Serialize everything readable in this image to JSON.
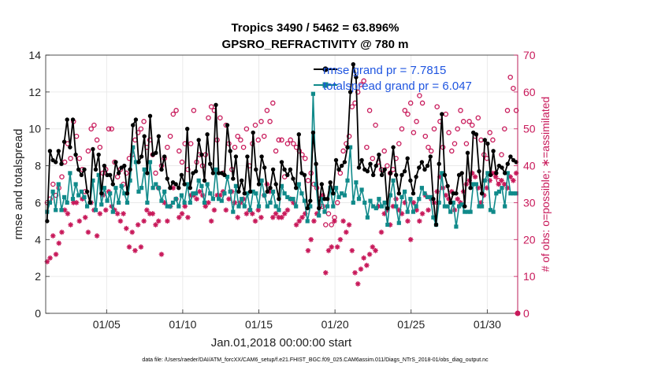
{
  "chart_data": {
    "type": "line",
    "title": "Tropics 3490 / 5462 = 63.896%",
    "subtitle": "GPSRO_REFRACTIVITY @ 780 m",
    "xlabel": "Jan.01,2018 00:00:00 start",
    "ylabel": "rmse and totalspread",
    "ylabel_right": "# of obs: o=possible; ∗=assimilated",
    "footnote": "data file: /Users/raeder/DAI/ATM_forcXX/CAM6_setup/f.e21.FHIST_BGC.f09_025.CAM6assim.011/Diags_NTrS_2018-01/obs_diag_output.nc",
    "xlim": [
      1,
      32
    ],
    "ylim": [
      0,
      14
    ],
    "ylim_right": [
      0,
      70
    ],
    "x_ticks": [
      5,
      10,
      15,
      20,
      25,
      30
    ],
    "x_tick_labels": [
      "01/05",
      "01/10",
      "01/15",
      "01/20",
      "01/25",
      "01/30"
    ],
    "y_ticks": [
      0,
      2,
      4,
      6,
      8,
      10,
      12,
      14
    ],
    "y_tick_labels": [
      "0",
      "2",
      "4",
      "6",
      "8",
      "10",
      "12",
      "14"
    ],
    "y_right_ticks": [
      0,
      10,
      20,
      30,
      40,
      50,
      60,
      70
    ],
    "y_right_tick_labels": [
      "0",
      "10",
      "20",
      "30",
      "40",
      "50",
      "60",
      "70"
    ],
    "grid": true,
    "legend_position": "top-right",
    "series": [
      {
        "name": "rmse grand pr = 7.7815",
        "color": "#000000",
        "marker": "filled-circle",
        "values": [
          5.0,
          8.8,
          8.3,
          8.2,
          8.8,
          8.1,
          9.3,
          10.5,
          9.0,
          10.5,
          8.6,
          7.8,
          7.5,
          7.8,
          6.6,
          6.0,
          8.9,
          7.8,
          8.6,
          6.5,
          8.0,
          7.5,
          7.5,
          7.0,
          8.2,
          7.6,
          7.9,
          8.0,
          6.5,
          7.8,
          10.2,
          10.5,
          8.2,
          8.5,
          9.6,
          7.6,
          10.7,
          8.6,
          8.7,
          9.6,
          7.8,
          8.5,
          7.3,
          6.8,
          7.1,
          7.0,
          6.8,
          7.5,
          7.0,
          10.0,
          6.8,
          7.6,
          7.7,
          9.4,
          8.6,
          7.2,
          9.7,
          8.1,
          7.6,
          11.3,
          7.6,
          7.6,
          7.5,
          10.2,
          8.8,
          7.3,
          8.5,
          6.6,
          7.2,
          6.5,
          8.5,
          6.6,
          9.8,
          7.8,
          7.0,
          8.5,
          7.9,
          6.6,
          6.8,
          7.8,
          7.0,
          6.2,
          8.2,
          7.8,
          7.5,
          7.8,
          7.3,
          6.8,
          9.7,
          7.6,
          7.5,
          5.7,
          6.1,
          9.8,
          8.1,
          5.7,
          7.0,
          6.2,
          6.2,
          7.1,
          6.5,
          8.3,
          7.8,
          8.0,
          8.2,
          9.0,
          12.0,
          13.5,
          12.8,
          7.9,
          8.3,
          7.8,
          7.7,
          8.1,
          7.5,
          8.0,
          8.6,
          7.5,
          7.8,
          5.7,
          7.6,
          9.0,
          7.5,
          6.5,
          7.5,
          7.7,
          8.4,
          7.2,
          6.5,
          7.4,
          7.9,
          8.2,
          7.8,
          8.0,
          8.5,
          6.2,
          4.8,
          8.1,
          10.8,
          7.5,
          6.9,
          6.0,
          6.5,
          6.5,
          7.5,
          7.6,
          5.8,
          8.7,
          6.8,
          9.8,
          9.7,
          7.7,
          6.5,
          9.4,
          9.2,
          7.5,
          8.8,
          7.6,
          8.0,
          7.9,
          7.6,
          8.1,
          8.5,
          8.3,
          8.2
        ]
      },
      {
        "name": "totalspread grand pr = 6.047",
        "color": "#108a8a",
        "marker": "filled-square",
        "values": [
          5.5,
          6.0,
          6.6,
          5.6,
          7.0,
          5.6,
          6.3,
          6.0,
          7.6,
          6.2,
          7.0,
          6.4,
          6.6,
          6.3,
          5.8,
          6.0,
          7.2,
          5.6,
          7.5,
          5.9,
          6.8,
          6.1,
          6.5,
          5.5,
          6.8,
          6.0,
          6.9,
          6.5,
          6.0,
          7.2,
          9.0,
          8.2,
          6.6,
          6.8,
          7.8,
          6.0,
          8.2,
          6.8,
          7.0,
          6.8,
          6.1,
          6.6,
          5.8,
          5.8,
          6.0,
          6.2,
          5.8,
          6.4,
          6.0,
          7.0,
          6.0,
          6.5,
          6.5,
          7.2,
          6.9,
          6.0,
          7.0,
          6.5,
          6.2,
          7.8,
          6.2,
          6.1,
          6.5,
          7.4,
          6.6,
          5.5,
          6.9,
          5.8,
          6.2,
          5.8,
          6.5,
          5.6,
          6.6,
          6.5,
          5.8,
          7.2,
          6.4,
          5.8,
          6.0,
          6.6,
          5.8,
          5.6,
          6.9,
          6.5,
          6.3,
          6.2,
          6.2,
          5.8,
          7.0,
          6.5,
          6.1,
          5.0,
          5.8,
          11.9,
          7.0,
          5.3,
          6.2,
          5.5,
          5.8,
          6.8,
          5.8,
          6.8,
          6.3,
          6.5,
          6.4,
          7.2,
          9.0,
          6.0,
          7.1,
          6.2,
          6.7,
          6.0,
          5.2,
          6.1,
          5.8,
          5.7,
          6.2,
          5.8,
          6.0,
          4.8,
          6.4,
          7.2,
          5.8,
          4.9,
          6.3,
          6.6,
          5.5,
          6.2,
          5.5,
          5.8,
          6.2,
          6.8,
          6.5,
          6.3,
          6.3,
          5.2,
          4.8,
          6.0,
          7.6,
          5.8,
          5.8,
          5.5,
          6.0,
          4.7,
          5.8,
          5.9,
          5.5,
          5.5,
          5.5,
          7.0,
          7.0,
          5.8,
          5.8,
          7.2,
          7.6,
          5.6,
          5.5,
          6.5,
          6.6,
          6.8,
          5.8,
          7.6,
          6.5,
          6.5,
          6.5
        ]
      },
      {
        "name": "possible",
        "axis": "right",
        "color": "#c8195a",
        "marker": "open-circle",
        "values": [
          30,
          31,
          35,
          32,
          34,
          37,
          41,
          46,
          42,
          52,
          48,
          42,
          39,
          33,
          44,
          50,
          51,
          47,
          45,
          38,
          39,
          50,
          50,
          41,
          37,
          39,
          35,
          38,
          42,
          43,
          47,
          49,
          50,
          52,
          45,
          47,
          43,
          38,
          34,
          40,
          42,
          45,
          48,
          54,
          55,
          44,
          41,
          46,
          39,
          46,
          55,
          41,
          43,
          40,
          43,
          53,
          56,
          55,
          47,
          53,
          38,
          51,
          46,
          39,
          45,
          48,
          47,
          45,
          50,
          40,
          46,
          51,
          47,
          52,
          48,
          55,
          52,
          57,
          44,
          47,
          47,
          37,
          46,
          47,
          46,
          45,
          44,
          43,
          42,
          36,
          38,
          35,
          34,
          31,
          29,
          24,
          27,
          24,
          26,
          30,
          38,
          44,
          46,
          48,
          56,
          57,
          60,
          62,
          63,
          45,
          55,
          42,
          51,
          41,
          39,
          44,
          40,
          38,
          39,
          42,
          46,
          50,
          55,
          54,
          57,
          49,
          52,
          59,
          57,
          48,
          45,
          44,
          50,
          56,
          52,
          45,
          54,
          49,
          44,
          46,
          50,
          55,
          52,
          46,
          52,
          51,
          48,
          53,
          47,
          43,
          42,
          49,
          47,
          38,
          36,
          43,
          50,
          55,
          64,
          61,
          55
        ]
      },
      {
        "name": "assimilated",
        "axis": "right",
        "color": "#c8195a",
        "marker": "asterisk",
        "values": [
          14,
          15,
          21,
          16,
          19,
          22,
          28,
          27,
          24,
          30,
          30,
          25,
          31,
          26,
          22,
          30,
          28,
          21,
          27,
          32,
          28,
          33,
          29,
          28,
          27,
          25,
          27,
          23,
          18,
          22,
          17,
          24,
          18,
          25,
          28,
          27,
          27,
          24,
          25,
          16,
          30,
          25,
          29,
          34,
          31,
          26,
          27,
          29,
          26,
          32,
          32,
          31,
          33,
          32,
          29,
          30,
          25,
          28,
          32,
          32,
          33,
          28,
          31,
          33,
          30,
          26,
          30,
          31,
          27,
          28,
          27,
          25,
          28,
          26,
          32,
          35,
          33,
          26,
          27,
          26,
          26,
          27,
          28,
          31,
          30,
          24,
          25,
          26,
          27,
          17,
          20,
          25,
          27,
          29,
          32,
          11,
          17,
          18,
          25,
          18,
          20,
          25,
          22,
          24,
          17,
          11,
          8,
          12,
          15,
          13,
          16,
          18,
          17,
          29,
          22,
          27,
          28,
          24,
          29,
          31,
          28,
          27,
          30,
          25,
          20,
          30,
          28,
          25,
          27,
          32,
          28,
          31,
          30,
          33,
          37,
          34,
          32,
          31,
          33,
          28,
          31,
          30,
          33,
          35,
          36,
          38,
          37,
          34,
          30,
          32,
          34,
          36,
          38,
          37,
          35,
          36,
          35,
          34,
          37,
          36,
          38
        ]
      }
    ]
  }
}
